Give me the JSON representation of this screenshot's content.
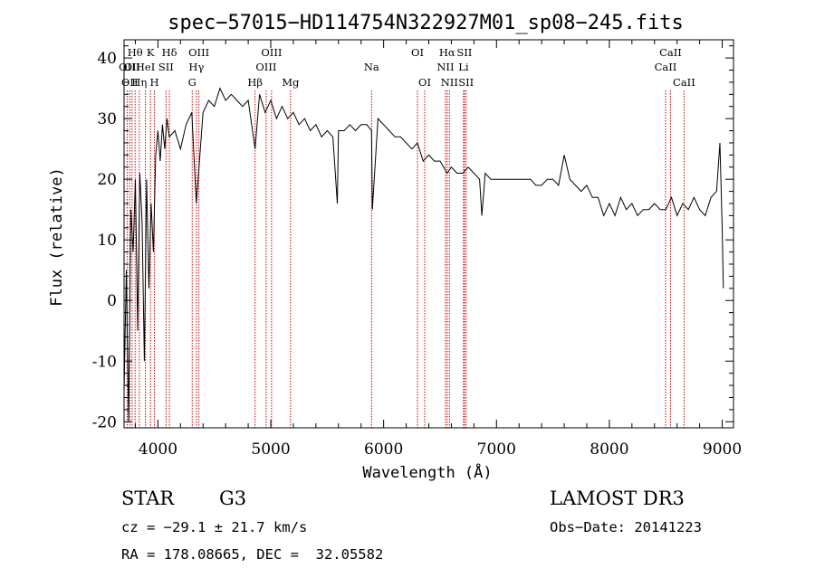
{
  "chart_data": {
    "type": "line",
    "title": "spec−57015−HD114754N322927M01_sp08−245.fits",
    "xlabel": "Wavelength (Å)",
    "ylabel": "Flux (relative)",
    "xlim": [
      3700,
      9100
    ],
    "ylim": [
      -21,
      43
    ],
    "xticks": [
      4000,
      5000,
      6000,
      7000,
      8000,
      9000
    ],
    "yticks": [
      -20,
      -10,
      0,
      10,
      20,
      30,
      40
    ],
    "grid": false,
    "legend": "none",
    "line_color": "#000000",
    "marker_color": "#cc0000",
    "series": [
      {
        "x": [
          3700,
          3720,
          3740,
          3760,
          3780,
          3800,
          3820,
          3840,
          3860,
          3880,
          3900,
          3920,
          3940,
          3960,
          3980,
          4000,
          4020,
          4040,
          4060,
          4080,
          4100,
          4150,
          4200,
          4250,
          4300,
          4340,
          4400,
          4450,
          4500,
          4550,
          4600,
          4650,
          4700,
          4750,
          4800,
          4861,
          4900,
          4950,
          5000,
          5050,
          5100,
          5150,
          5200,
          5250,
          5300,
          5350,
          5400,
          5450,
          5500,
          5550,
          5590,
          5600,
          5650,
          5700,
          5750,
          5800,
          5850,
          5893,
          5900,
          5950,
          6000,
          6050,
          6100,
          6150,
          6200,
          6250,
          6300,
          6350,
          6400,
          6450,
          6500,
          6563,
          6600,
          6650,
          6700,
          6750,
          6800,
          6850,
          6870,
          6900,
          6950,
          7000,
          7050,
          7100,
          7150,
          7200,
          7250,
          7300,
          7350,
          7400,
          7450,
          7500,
          7550,
          7600,
          7650,
          7700,
          7750,
          7800,
          7850,
          7900,
          7950,
          8000,
          8050,
          8100,
          8150,
          8200,
          8250,
          8300,
          8350,
          8400,
          8450,
          8500,
          8550,
          8600,
          8650,
          8700,
          8750,
          8800,
          8850,
          8900,
          8950,
          8980,
          9000,
          9010
        ],
        "y": [
          -15,
          5,
          -20,
          15,
          8,
          20,
          -5,
          21,
          13,
          -10,
          20,
          2,
          16,
          8,
          24,
          28,
          23,
          29,
          25,
          30,
          27,
          28,
          25,
          29,
          31,
          16,
          31,
          33,
          32,
          35,
          33,
          34,
          33,
          32,
          33,
          25,
          34,
          31,
          33,
          30,
          32,
          30,
          31,
          29,
          30,
          28,
          29,
          27,
          28,
          27,
          16,
          28,
          28,
          29,
          28,
          29,
          29,
          28,
          15,
          30,
          29,
          28,
          27,
          27,
          26,
          25,
          26,
          23,
          24,
          23,
          23,
          21,
          22,
          21,
          21,
          22,
          21,
          20,
          14,
          21,
          20,
          20,
          20,
          20,
          20,
          20,
          20,
          20,
          19,
          19,
          20,
          20,
          19,
          24,
          20,
          19,
          18,
          19,
          17,
          17,
          14,
          16,
          14,
          17,
          15,
          16,
          14,
          15,
          15,
          16,
          15,
          15,
          17,
          14,
          16,
          15,
          17,
          15,
          14,
          17,
          18,
          26,
          12,
          2
        ]
      }
    ],
    "line_markers": [
      {
        "wavelength": 3727,
        "label": "OII",
        "row": 2
      },
      {
        "wavelength": 3750,
        "label": "OII",
        "row": 3
      },
      {
        "wavelength": 3771,
        "label": "OII",
        "row": 2
      },
      {
        "wavelength": 3798,
        "label": "Hθ",
        "row": 1
      },
      {
        "wavelength": 3835,
        "label": "Hη",
        "row": 3
      },
      {
        "wavelength": 3889,
        "label": "HeI",
        "row": 2
      },
      {
        "wavelength": 3934,
        "label": "K",
        "row": 1
      },
      {
        "wavelength": 3969,
        "label": "H",
        "row": 3
      },
      {
        "wavelength": 4072,
        "label": "SII",
        "row": 2
      },
      {
        "wavelength": 4102,
        "label": "Hδ",
        "row": 1
      },
      {
        "wavelength": 4304,
        "label": "G",
        "row": 3
      },
      {
        "wavelength": 4341,
        "label": "Hγ",
        "row": 2
      },
      {
        "wavelength": 4363,
        "label": "OIII",
        "row": 1
      },
      {
        "wavelength": 4861,
        "label": "Hβ",
        "row": 3
      },
      {
        "wavelength": 4959,
        "label": "OIII",
        "row": 2
      },
      {
        "wavelength": 5007,
        "label": "OIII",
        "row": 1
      },
      {
        "wavelength": 5175,
        "label": "Mg",
        "row": 3
      },
      {
        "wavelength": 5893,
        "label": "Na",
        "row": 2
      },
      {
        "wavelength": 6300,
        "label": "OI",
        "row": 1
      },
      {
        "wavelength": 6364,
        "label": "OI",
        "row": 3
      },
      {
        "wavelength": 6548,
        "label": "NII",
        "row": 2
      },
      {
        "wavelength": 6563,
        "label": "Hα",
        "row": 1
      },
      {
        "wavelength": 6583,
        "label": "NII",
        "row": 3
      },
      {
        "wavelength": 6708,
        "label": "Li",
        "row": 2
      },
      {
        "wavelength": 6716,
        "label": "SII",
        "row": 1
      },
      {
        "wavelength": 6731,
        "label": "SII",
        "row": 3
      },
      {
        "wavelength": 8498,
        "label": "CaII",
        "row": 2
      },
      {
        "wavelength": 8542,
        "label": "CaII",
        "row": 1
      },
      {
        "wavelength": 8662,
        "label": "CaII",
        "row": 3
      }
    ]
  },
  "footer": {
    "object_type": "STAR",
    "subclass": "G3",
    "survey": "LAMOST DR3",
    "redshift": "cz = −29.1 ± 21.7 km/s",
    "obs_date": "Obs−Date: 20141223",
    "coords": "RA = 178.08665, DEC =  32.05582"
  }
}
